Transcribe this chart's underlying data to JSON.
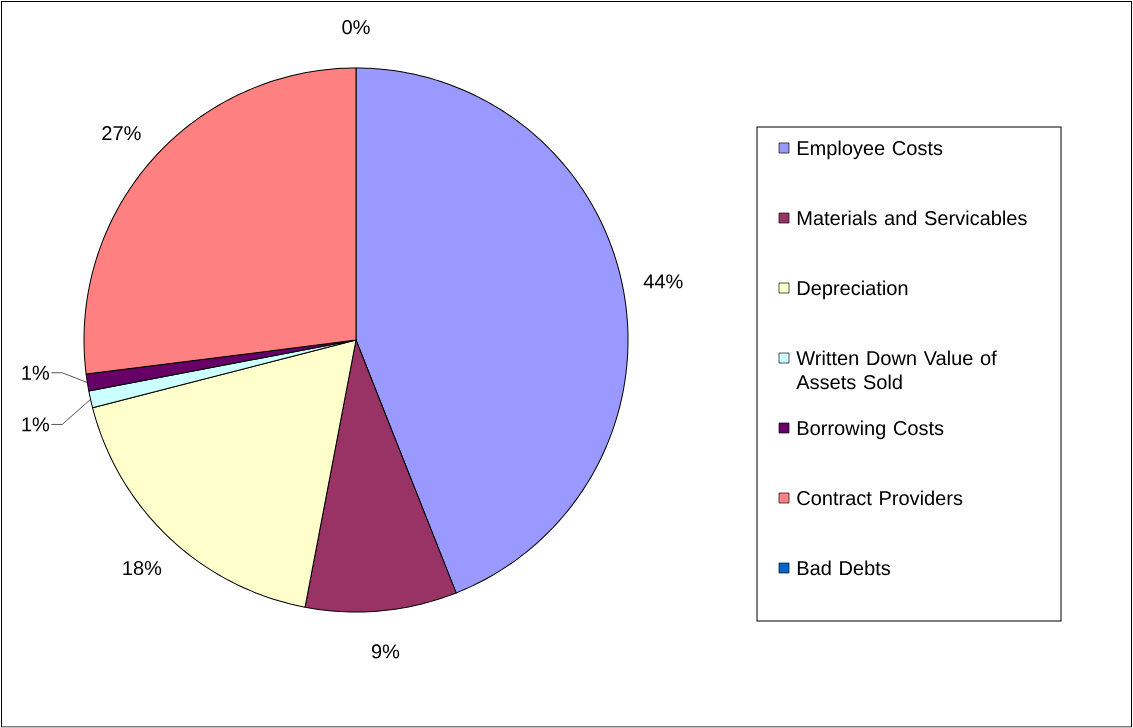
{
  "chart_data": {
    "type": "pie",
    "categories": [
      "Employee Costs",
      "Materials and Servicables",
      "Depreciation",
      "Written Down Value of Assets Sold",
      "Borrowing Costs",
      "Contract Providers",
      "Bad Debts"
    ],
    "values": [
      44,
      9,
      18,
      1,
      1,
      27,
      0
    ],
    "value_labels": [
      "44%",
      "9%",
      "18%",
      "1%",
      "1%",
      "27%",
      "0%"
    ],
    "colors": [
      "#9999ff",
      "#993366",
      "#ffffcc",
      "#ccffff",
      "#660066",
      "#ff8080",
      "#0066cc"
    ],
    "legend": "right"
  }
}
